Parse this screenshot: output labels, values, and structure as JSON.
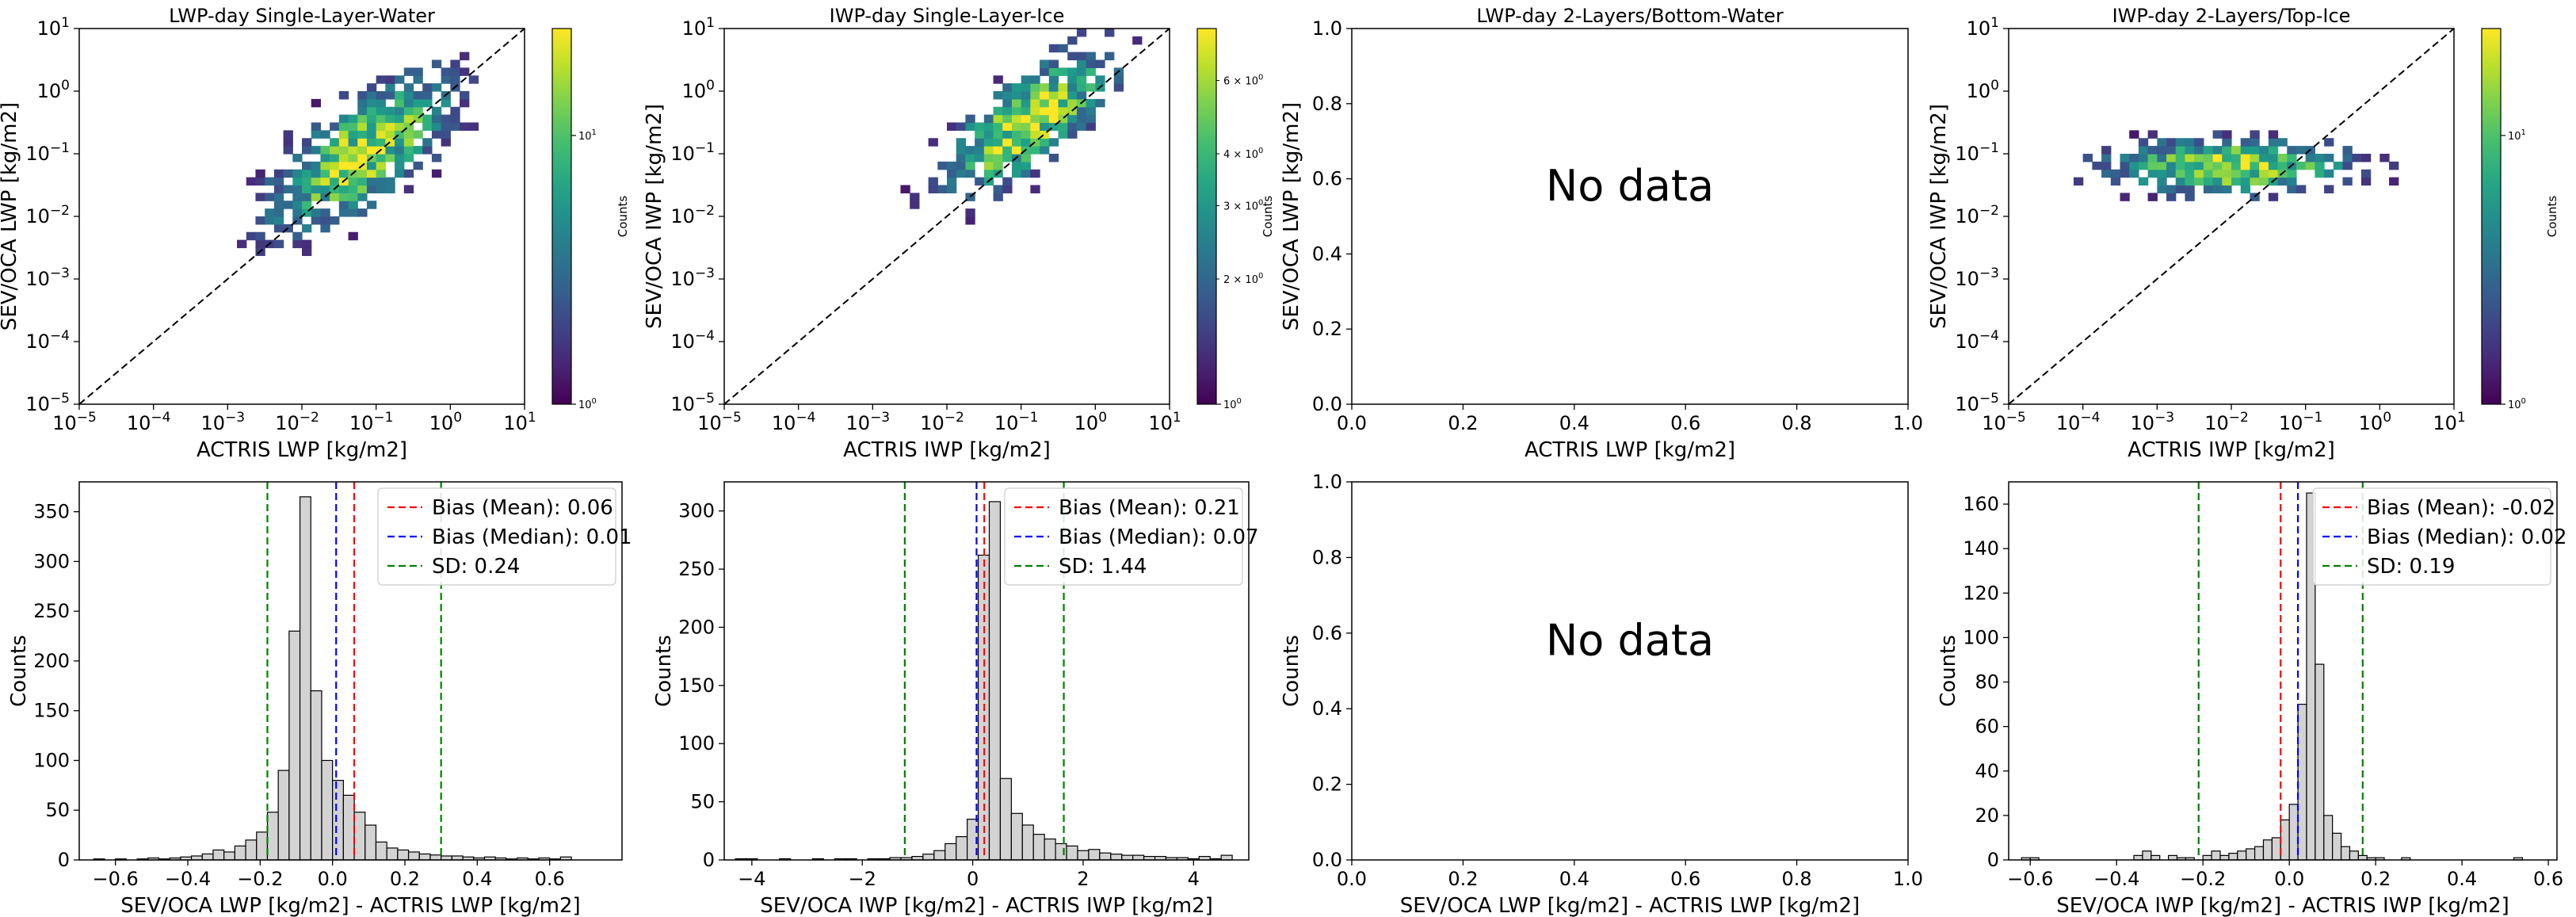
{
  "chart_data": [
    {
      "type": "heatmap",
      "title": "LWP-day Single-Layer-Water",
      "xlabel": "ACTRIS LWP [kg/m2]",
      "ylabel": "SEV/OCA LWP [kg/m2]",
      "scale": "log",
      "xlim": [
        1e-05,
        10
      ],
      "ylim": [
        1e-05,
        10
      ],
      "x_ticks": [
        "10^-5",
        "10^-4",
        "10^-3",
        "10^-2",
        "10^-1",
        "10^0",
        "10^1"
      ],
      "y_ticks": [
        "10^-5",
        "10^-4",
        "10^-3",
        "10^-2",
        "10^-1",
        "10^0",
        "10^1"
      ],
      "reference_line": "1:1 dashed",
      "colormap": "viridis",
      "colorbar": {
        "label": "Counts",
        "scale": "log",
        "range": [
          1,
          25
        ],
        "ticks": [
          "10^0",
          "10^1"
        ]
      },
      "hotspot": {
        "x_log10": -1.2,
        "y_log10": -1.0
      }
    },
    {
      "type": "heatmap",
      "title": "IWP-day Single-Layer-Ice",
      "xlabel": "ACTRIS IWP [kg/m2]",
      "ylabel": "SEV/OCA IWP [kg/m2]",
      "scale": "log",
      "xlim": [
        1e-05,
        10
      ],
      "ylim": [
        1e-05,
        10
      ],
      "x_ticks": [
        "10^-5",
        "10^-4",
        "10^-3",
        "10^-2",
        "10^-1",
        "10^0",
        "10^1"
      ],
      "y_ticks": [
        "10^-5",
        "10^-4",
        "10^-3",
        "10^-2",
        "10^-1",
        "10^0",
        "10^1"
      ],
      "reference_line": "1:1 dashed",
      "colormap": "viridis",
      "colorbar": {
        "label": "Counts",
        "scale": "log",
        "range": [
          1,
          8
        ],
        "ticks": [
          {
            "mant": "2",
            "value": 2
          },
          {
            "mant": "3",
            "value": 3
          },
          {
            "mant": "4",
            "value": 4
          },
          {
            "mant": "6",
            "value": 6
          }
        ],
        "base_tick": "10^0"
      },
      "hotspot": {
        "x_log10": -0.9,
        "y_log10": -0.5
      }
    },
    {
      "type": "heatmap",
      "title": "LWP-day 2-Layers/Bottom-Water",
      "xlabel": "ACTRIS LWP [kg/m2]",
      "ylabel": "SEV/OCA LWP [kg/m2]",
      "scale": "linear",
      "xlim": [
        0,
        1
      ],
      "ylim": [
        0,
        1
      ],
      "x_ticks": [
        "0.0",
        "0.2",
        "0.4",
        "0.6",
        "0.8",
        "1.0"
      ],
      "y_ticks": [
        "0.0",
        "0.2",
        "0.4",
        "0.6",
        "0.8",
        "1.0"
      ],
      "empty_message": "No data"
    },
    {
      "type": "heatmap",
      "title": "IWP-day 2-Layers/Top-Ice",
      "xlabel": "ACTRIS IWP [kg/m2]",
      "ylabel": "SEV/OCA IWP [kg/m2]",
      "scale": "log",
      "xlim": [
        1e-05,
        10
      ],
      "ylim": [
        1e-05,
        10
      ],
      "x_ticks": [
        "10^-5",
        "10^-4",
        "10^-3",
        "10^-2",
        "10^-1",
        "10^0",
        "10^1"
      ],
      "y_ticks": [
        "10^-5",
        "10^-4",
        "10^-3",
        "10^-2",
        "10^-1",
        "10^0",
        "10^1"
      ],
      "reference_line": "1:1 dashed",
      "colormap": "viridis",
      "colorbar": {
        "label": "Counts",
        "scale": "log",
        "range": [
          1,
          25
        ],
        "ticks": [
          "10^0",
          "10^1"
        ]
      },
      "hotspot": {
        "x_log10": -2.0,
        "y_log10": -1.2
      }
    },
    {
      "type": "bar",
      "title": "",
      "xlabel": "SEV/OCA LWP [kg/m2] - ACTRIS LWP [kg/m2]",
      "ylabel": "Counts",
      "xlim": [
        -0.7,
        0.8
      ],
      "ylim": [
        0,
        380
      ],
      "x_ticks": [
        -0.6,
        -0.4,
        -0.2,
        0.0,
        0.2,
        0.4,
        0.6
      ],
      "x_tick_labels": [
        "−0.6",
        "−0.4",
        "−0.2",
        "0.0",
        "0.2",
        "0.4",
        "0.6"
      ],
      "y_ticks": [
        0,
        50,
        100,
        150,
        200,
        250,
        300,
        350
      ],
      "bins": {
        "start": -0.66,
        "width": 0.03,
        "counts": [
          1,
          0,
          1,
          0,
          1,
          2,
          1,
          2,
          3,
          4,
          6,
          10,
          8,
          14,
          20,
          28,
          48,
          90,
          230,
          365,
          170,
          100,
          80,
          65,
          48,
          35,
          18,
          12,
          10,
          8,
          6,
          5,
          4,
          4,
          3,
          2,
          3,
          2,
          1,
          2,
          1,
          2,
          1,
          3
        ]
      },
      "lines": [
        {
          "label": "Bias (Mean): 0.06",
          "value": 0.06,
          "color": "#ff0000"
        },
        {
          "label": "Bias (Median): 0.01",
          "value": 0.01,
          "color": "#0000ff"
        },
        {
          "label": "SD: 0.24",
          "values": [
            -0.18,
            0.3
          ],
          "color": "#008000"
        }
      ]
    },
    {
      "type": "bar",
      "title": "",
      "xlabel": "SEV/OCA IWP [kg/m2] - ACTRIS IWP [kg/m2]",
      "ylabel": "Counts",
      "xlim": [
        -4.5,
        5.0
      ],
      "ylim": [
        0,
        325
      ],
      "x_ticks": [
        -4,
        -2,
        0,
        2,
        4
      ],
      "x_tick_labels": [
        "−4",
        "−2",
        "0",
        "2",
        "4"
      ],
      "y_ticks": [
        0,
        50,
        100,
        150,
        200,
        250,
        300
      ],
      "bins": {
        "start": -4.3,
        "width": 0.2,
        "counts": [
          1,
          1,
          0,
          0,
          1,
          0,
          0,
          1,
          0,
          1,
          1,
          0,
          1,
          1,
          2,
          2,
          3,
          5,
          8,
          14,
          20,
          35,
          262,
          308,
          70,
          40,
          30,
          22,
          18,
          14,
          12,
          8,
          9,
          6,
          5,
          4,
          4,
          3,
          3,
          2,
          2,
          1,
          3,
          1,
          4
        ]
      },
      "lines": [
        {
          "label": "Bias (Mean): 0.21",
          "value": 0.21,
          "color": "#ff0000"
        },
        {
          "label": "Bias (Median): 0.07",
          "value": 0.07,
          "color": "#0000ff"
        },
        {
          "label": "SD: 1.44",
          "values": [
            -1.23,
            1.65
          ],
          "color": "#008000"
        }
      ]
    },
    {
      "type": "bar",
      "title": "",
      "xlabel": "SEV/OCA LWP [kg/m2] - ACTRIS LWP [kg/m2]",
      "ylabel": "Counts",
      "xlim": [
        0,
        1
      ],
      "ylim": [
        0,
        1
      ],
      "x_ticks": [
        0,
        0.2,
        0.4,
        0.6,
        0.8,
        1.0
      ],
      "x_tick_labels": [
        "0.0",
        "0.2",
        "0.4",
        "0.6",
        "0.8",
        "1.0"
      ],
      "y_ticks": [
        0,
        0.2,
        0.4,
        0.6,
        0.8,
        1.0
      ],
      "y_tick_labels": [
        "0.0",
        "0.2",
        "0.4",
        "0.6",
        "0.8",
        "1.0"
      ],
      "empty_message": "No data"
    },
    {
      "type": "bar",
      "title": "",
      "xlabel": "SEV/OCA IWP [kg/m2] - ACTRIS IWP [kg/m2]",
      "ylabel": "Counts",
      "xlim": [
        -0.65,
        0.62
      ],
      "ylim": [
        0,
        170
      ],
      "x_ticks": [
        -0.6,
        -0.4,
        -0.2,
        0.0,
        0.2,
        0.4,
        0.6
      ],
      "x_tick_labels": [
        "−0.6",
        "−0.4",
        "−0.2",
        "0.0",
        "0.2",
        "0.4",
        "0.6"
      ],
      "y_ticks": [
        0,
        20,
        40,
        60,
        80,
        100,
        120,
        140,
        160
      ],
      "bins": {
        "start": -0.62,
        "width": 0.02,
        "counts": [
          1,
          1,
          0,
          0,
          0,
          0,
          0,
          0,
          0,
          0,
          0,
          0,
          0,
          2,
          4,
          2,
          0,
          2,
          1,
          1,
          0,
          2,
          4,
          2,
          3,
          4,
          5,
          6,
          9,
          10,
          18,
          25,
          70,
          165,
          88,
          20,
          12,
          6,
          4,
          2,
          1,
          1,
          0,
          0,
          1,
          0,
          0,
          0,
          0,
          0,
          0,
          0,
          0,
          0,
          0,
          0,
          0,
          1
        ]
      },
      "lines": [
        {
          "label": "Bias (Mean): -0.02",
          "value": -0.02,
          "color": "#ff0000"
        },
        {
          "label": "Bias (Median): 0.02",
          "value": 0.02,
          "color": "#0000ff"
        },
        {
          "label": "SD: 0.19",
          "values": [
            -0.21,
            0.17
          ],
          "color": "#008000"
        }
      ]
    }
  ]
}
